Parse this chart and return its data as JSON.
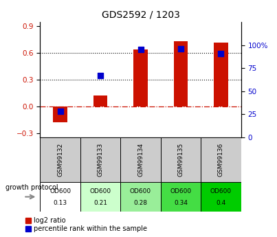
{
  "title": "GDS2592 / 1203",
  "samples": [
    "GSM99132",
    "GSM99133",
    "GSM99134",
    "GSM99135",
    "GSM99136"
  ],
  "log2_ratio": [
    -0.18,
    0.12,
    0.64,
    0.73,
    0.72
  ],
  "percentile_rank": [
    28,
    67,
    95,
    96,
    91
  ],
  "growth_protocol_label": "growth protocol",
  "od600_values": [
    "0.13",
    "0.21",
    "0.28",
    "0.34",
    "0.4"
  ],
  "od600_colors": [
    "#ffffff",
    "#ccffcc",
    "#99ee99",
    "#44dd44",
    "#00cc00"
  ],
  "bar_color": "#cc1100",
  "dot_color": "#0000cc",
  "ylim_left": [
    -0.35,
    0.95
  ],
  "ylim_right": [
    0,
    125
  ],
  "yticks_left": [
    -0.3,
    0.0,
    0.3,
    0.6,
    0.9
  ],
  "yticks_right": [
    0,
    25,
    50,
    75,
    100
  ],
  "hline_y": [
    0.3,
    0.6
  ],
  "zero_line_y": 0.0,
  "legend_red_label": "log2 ratio",
  "legend_blue_label": "percentile rank within the sample",
  "bar_width": 0.35,
  "dot_size": 40,
  "sample_box_color": "#cccccc",
  "arrow_color": "#888888"
}
